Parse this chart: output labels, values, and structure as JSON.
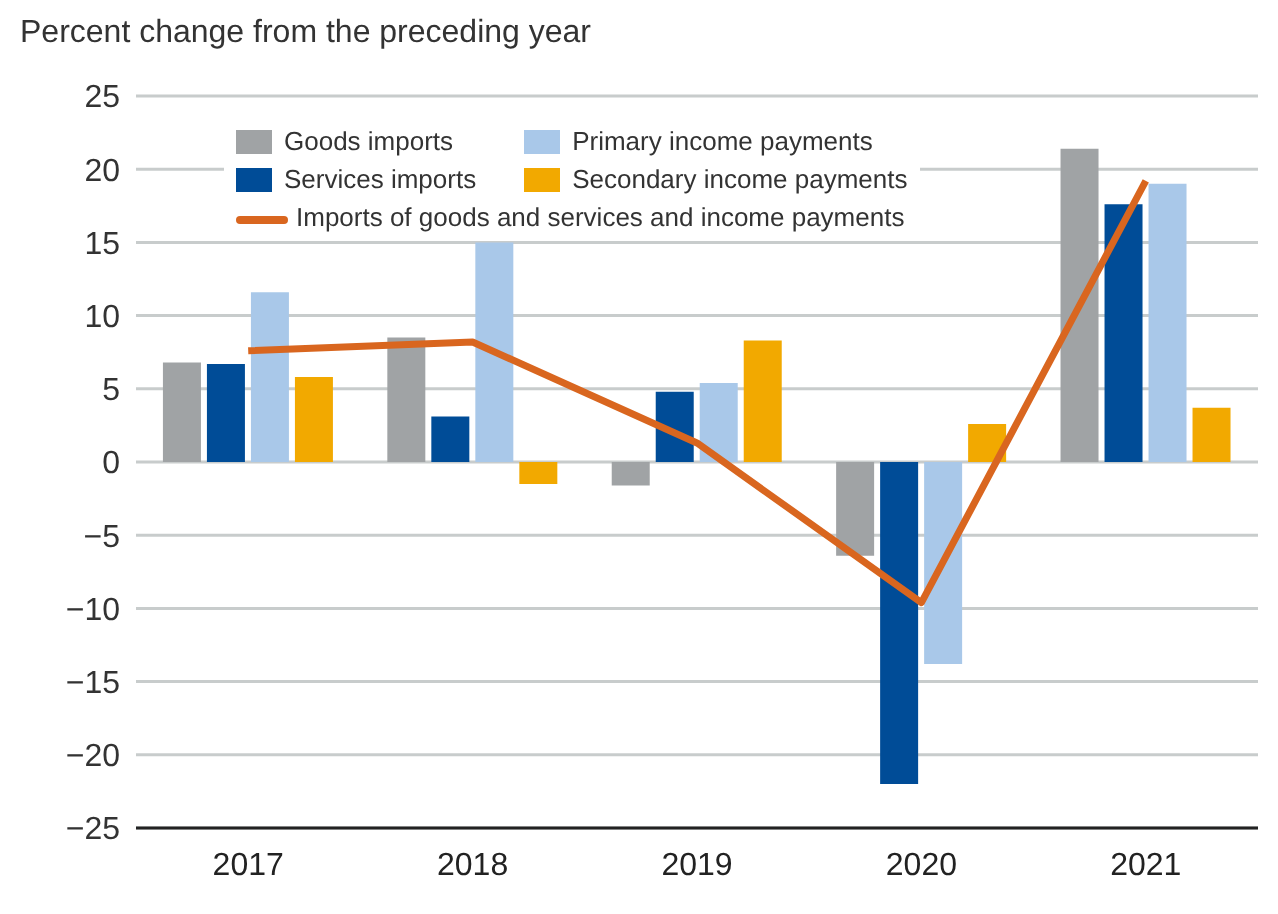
{
  "chart_data": {
    "type": "bar",
    "ylabel": "Percent change from the preceding year",
    "categories": [
      "2017",
      "2018",
      "2019",
      "2020",
      "2021"
    ],
    "series": [
      {
        "name": "Goods imports",
        "color": "#a0a3a5",
        "values": [
          6.8,
          8.5,
          -1.6,
          -6.4,
          21.4
        ]
      },
      {
        "name": "Services imports",
        "color": "#004c97",
        "values": [
          6.7,
          3.1,
          4.8,
          -22,
          17.6
        ]
      },
      {
        "name": "Primary income payments",
        "color": "#a9c8e9",
        "values": [
          11.6,
          15,
          5.4,
          -13.8,
          19
        ]
      },
      {
        "name": "Secondary income payments",
        "color": "#f2a900",
        "values": [
          5.8,
          -1.5,
          8.3,
          2.6,
          3.7
        ]
      },
      {
        "name": "Imports of goods and services and income payments",
        "type": "line",
        "color": "#d9661f",
        "values": [
          7.6,
          8.2,
          1.3,
          -9.6,
          19.2
        ]
      }
    ],
    "ylim": [
      -25,
      25
    ],
    "yticks": [
      -25,
      -20,
      -15,
      -10,
      -5,
      0,
      5,
      10,
      15,
      20,
      25
    ],
    "grid": "y",
    "legend": "top"
  }
}
